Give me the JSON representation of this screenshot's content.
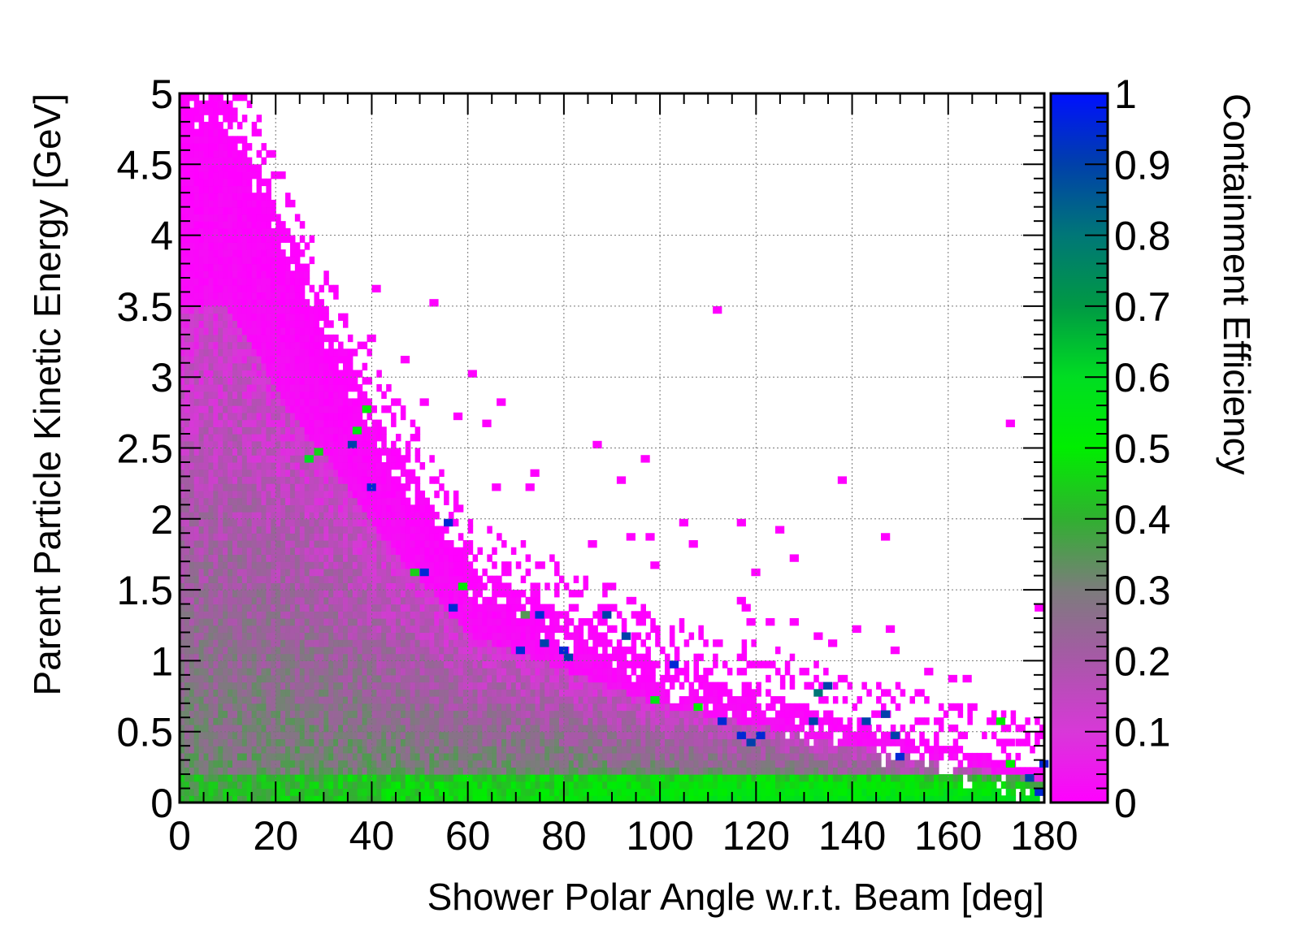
{
  "chart_data": {
    "type": "heatmap",
    "title": "",
    "xlabel": "Shower Polar Angle w.r.t. Beam [deg]",
    "ylabel": "Parent Particle Kinetic Energy [GeV]",
    "zlabel": "Containment Efficiency",
    "xlim": [
      0,
      180
    ],
    "ylim": [
      0,
      5
    ],
    "zlim": [
      0,
      1
    ],
    "x_bins": 180,
    "y_bins": 100,
    "xticks": [
      "0",
      "20",
      "40",
      "60",
      "80",
      "100",
      "120",
      "140",
      "160",
      "180"
    ],
    "yticks": [
      "0",
      "0.5",
      "1",
      "1.5",
      "2",
      "2.5",
      "3",
      "3.5",
      "4",
      "4.5",
      "5"
    ],
    "zticks": [
      "0",
      "0.1",
      "0.2",
      "0.3",
      "0.4",
      "0.5",
      "0.6",
      "0.7",
      "0.8",
      "0.9",
      "1"
    ],
    "grid": true,
    "colormap": [
      {
        "z": 0.0,
        "color": "#ff00ff"
      },
      {
        "z": 0.1,
        "color": "#d838d8"
      },
      {
        "z": 0.2,
        "color": "#a858a8"
      },
      {
        "z": 0.3,
        "color": "#7c7c7c"
      },
      {
        "z": 0.4,
        "color": "#30b030"
      },
      {
        "z": 0.5,
        "color": "#00ee00"
      },
      {
        "z": 0.6,
        "color": "#00dd22"
      },
      {
        "z": 0.7,
        "color": "#009944"
      },
      {
        "z": 0.8,
        "color": "#007777"
      },
      {
        "z": 0.9,
        "color": "#0040aa"
      },
      {
        "z": 1.0,
        "color": "#0010ff"
      }
    ],
    "points": [
      [
        111,
        3.48,
        0.0
      ],
      [
        52,
        3.52,
        0.0
      ],
      [
        40,
        3.6,
        0.0
      ],
      [
        39,
        3.3,
        0.0
      ],
      [
        46,
        3.12,
        0.0
      ],
      [
        60,
        3.0,
        0.0
      ],
      [
        66,
        2.82,
        0.0
      ],
      [
        50,
        2.82,
        0.0
      ],
      [
        57,
        2.72,
        0.0
      ],
      [
        63,
        2.68,
        0.0
      ],
      [
        172,
        2.68,
        0.0
      ],
      [
        86,
        2.52,
        0.0
      ],
      [
        96,
        2.42,
        0.0
      ],
      [
        137,
        2.28,
        0.0
      ],
      [
        91,
        2.28,
        0.0
      ],
      [
        73,
        2.34,
        0.0
      ],
      [
        72,
        2.2,
        0.0
      ],
      [
        65,
        2.22,
        0.0
      ],
      [
        104,
        1.98,
        0.0
      ],
      [
        116,
        1.98,
        0.0
      ],
      [
        124,
        1.92,
        0.0
      ],
      [
        146,
        1.88,
        0.0
      ],
      [
        97,
        1.9,
        0.0
      ],
      [
        93,
        1.88,
        0.0
      ],
      [
        106,
        1.82,
        0.0
      ],
      [
        85,
        1.82,
        0.0
      ],
      [
        98,
        1.68,
        0.0
      ],
      [
        119,
        1.65,
        0.0
      ],
      [
        127,
        1.7,
        0.0
      ],
      [
        89,
        1.52,
        0.0
      ],
      [
        116,
        1.45,
        0.0
      ],
      [
        117,
        1.4,
        0.0
      ],
      [
        178,
        1.38,
        0.0
      ],
      [
        118,
        1.25,
        0.0
      ],
      [
        122,
        1.25,
        0.0
      ],
      [
        127,
        1.25,
        0.0
      ],
      [
        140,
        1.22,
        0.0
      ],
      [
        147,
        1.22,
        0.0
      ],
      [
        132,
        1.18,
        0.0
      ],
      [
        135,
        1.12,
        0.0
      ],
      [
        148,
        1.08,
        0.0
      ],
      [
        155,
        0.95,
        0.0
      ],
      [
        160,
        0.85,
        0.0
      ],
      [
        163,
        0.85,
        0.0
      ],
      [
        168,
        0.55,
        0.0
      ],
      [
        172,
        0.42,
        0.0
      ],
      [
        178,
        0.45,
        0.0
      ],
      [
        38,
        2.8,
        0.5
      ],
      [
        36,
        2.65,
        0.55
      ],
      [
        35,
        2.55,
        0.9
      ],
      [
        28,
        2.48,
        0.45
      ],
      [
        26,
        2.42,
        0.6
      ],
      [
        39,
        2.22,
        0.95
      ],
      [
        55,
        1.98,
        0.95
      ],
      [
        48,
        1.62,
        0.45
      ],
      [
        50,
        1.62,
        0.95
      ],
      [
        58,
        1.52,
        0.5
      ],
      [
        56,
        1.38,
        0.95
      ],
      [
        74,
        1.32,
        0.95
      ],
      [
        71,
        1.3,
        0.35
      ],
      [
        88,
        1.32,
        0.9
      ],
      [
        92,
        1.18,
        0.9
      ],
      [
        70,
        1.08,
        0.95
      ],
      [
        75,
        1.1,
        0.9
      ],
      [
        79,
        1.08,
        0.95
      ],
      [
        80,
        1.02,
        0.9
      ],
      [
        102,
        0.98,
        0.95
      ],
      [
        134,
        0.82,
        0.9
      ],
      [
        132,
        0.78,
        0.8
      ],
      [
        146,
        0.62,
        0.9
      ],
      [
        112,
        0.58,
        0.95
      ],
      [
        116,
        0.48,
        0.95
      ],
      [
        118,
        0.42,
        0.9
      ],
      [
        120,
        0.48,
        0.95
      ],
      [
        131,
        0.58,
        0.9
      ],
      [
        142,
        0.55,
        0.9
      ],
      [
        148,
        0.48,
        0.9
      ],
      [
        149,
        0.32,
        0.95
      ],
      [
        176,
        0.18,
        0.9
      ],
      [
        178,
        0.08,
        0.95
      ],
      [
        179,
        0.25,
        0.95
      ],
      [
        172,
        0.28,
        0.5
      ],
      [
        170,
        0.58,
        0.5
      ],
      [
        98,
        0.72,
        0.55
      ],
      [
        107,
        0.68,
        0.5
      ]
    ]
  }
}
